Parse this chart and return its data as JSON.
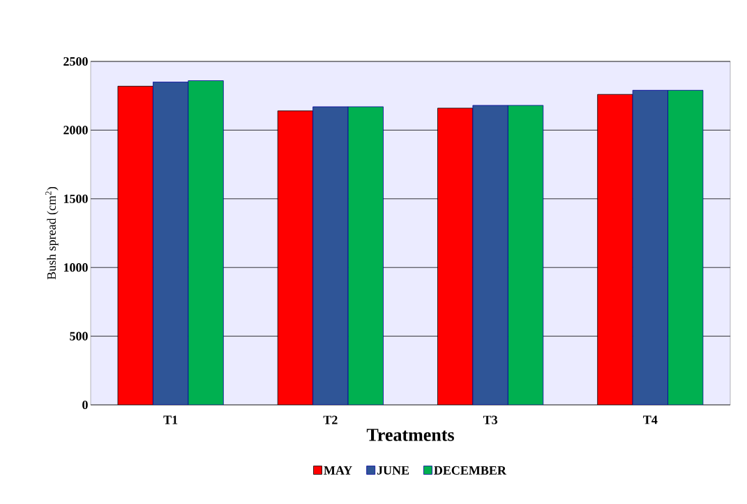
{
  "chart_data": {
    "type": "bar",
    "xlabel": "Treatments",
    "ylabel": "Bush spread (cm$^{2}$)",
    "categories": [
      "T1",
      "T2",
      "T3",
      "T4"
    ],
    "series": [
      {
        "name": "MAY",
        "color": "#ff0000",
        "values": [
          2320,
          2140,
          2160,
          2260
        ]
      },
      {
        "name": "JUNE",
        "color": "#2f5597",
        "values": [
          2350,
          2170,
          2180,
          2290
        ]
      },
      {
        "name": "DECEMBER",
        "color": "#00b050",
        "values": [
          2360,
          2170,
          2180,
          2290
        ]
      }
    ],
    "ylim": [
      0,
      2500
    ],
    "yticks": [
      0,
      500,
      1000,
      1500,
      2000,
      2500
    ],
    "grid": "y",
    "legend": "bottom"
  }
}
